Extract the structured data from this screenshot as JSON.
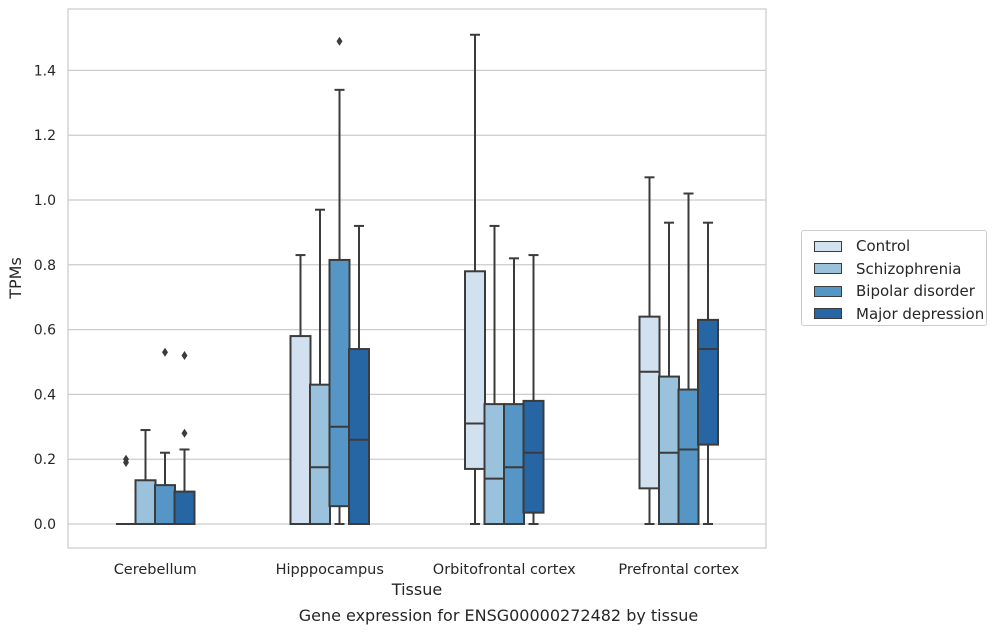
{
  "caption": "Gene expression for ENSG00000272482 by tissue",
  "legend": [
    {
      "name": "Control",
      "color": "#d1e1f0"
    },
    {
      "name": "Schizophrenia",
      "color": "#9bc2dd"
    },
    {
      "name": "Bipolar disorder",
      "color": "#5596c6"
    },
    {
      "name": "Major depression",
      "color": "#2766a5"
    }
  ],
  "chart_data": {
    "type": "box",
    "title": "",
    "xlabel": "Tissue",
    "ylabel": "TPMs",
    "ylim": [
      -0.07,
      1.6
    ],
    "yticks": [
      "0.0",
      "0.2",
      "0.4",
      "0.6",
      "0.8",
      "1.0",
      "1.2",
      "1.4"
    ],
    "grid": true,
    "legend_position": "right",
    "categories": [
      "Cerebellum",
      "Hipppocampus",
      "Orbitofrontal cortex",
      "Prefrontal cortex"
    ],
    "series": [
      {
        "name": "Control",
        "color": "#d1e1f0",
        "boxes": [
          {
            "whisker_low": 0.0,
            "q1": 0.0,
            "median": 0.0,
            "q3": 0.0,
            "whisker_high": 0.0,
            "outliers": [
              0.19,
              0.2
            ]
          },
          {
            "whisker_low": 0.0,
            "q1": 0.0,
            "median": 0.0,
            "q3": 0.58,
            "whisker_high": 0.83,
            "outliers": []
          },
          {
            "whisker_low": 0.0,
            "q1": 0.17,
            "median": 0.31,
            "q3": 0.78,
            "whisker_high": 1.51,
            "outliers": []
          },
          {
            "whisker_low": 0.0,
            "q1": 0.11,
            "median": 0.47,
            "q3": 0.64,
            "whisker_high": 1.07,
            "outliers": []
          }
        ]
      },
      {
        "name": "Schizophrenia",
        "color": "#9bc2dd",
        "boxes": [
          {
            "whisker_low": 0.0,
            "q1": 0.0,
            "median": 0.0,
            "q3": 0.135,
            "whisker_high": 0.29,
            "outliers": []
          },
          {
            "whisker_low": 0.0,
            "q1": 0.0,
            "median": 0.175,
            "q3": 0.43,
            "whisker_high": 0.97,
            "outliers": []
          },
          {
            "whisker_low": 0.0,
            "q1": 0.0,
            "median": 0.14,
            "q3": 0.37,
            "whisker_high": 0.92,
            "outliers": []
          },
          {
            "whisker_low": 0.0,
            "q1": 0.0,
            "median": 0.22,
            "q3": 0.455,
            "whisker_high": 0.93,
            "outliers": []
          }
        ]
      },
      {
        "name": "Bipolar disorder",
        "color": "#5596c6",
        "boxes": [
          {
            "whisker_low": 0.0,
            "q1": 0.0,
            "median": 0.0,
            "q3": 0.12,
            "whisker_high": 0.22,
            "outliers": [
              0.53
            ]
          },
          {
            "whisker_low": 0.0,
            "q1": 0.055,
            "median": 0.3,
            "q3": 0.815,
            "whisker_high": 1.34,
            "outliers": [
              1.49
            ]
          },
          {
            "whisker_low": 0.0,
            "q1": 0.0,
            "median": 0.175,
            "q3": 0.37,
            "whisker_high": 0.82,
            "outliers": []
          },
          {
            "whisker_low": 0.0,
            "q1": 0.0,
            "median": 0.23,
            "q3": 0.415,
            "whisker_high": 1.02,
            "outliers": []
          }
        ]
      },
      {
        "name": "Major depression",
        "color": "#2766a5",
        "boxes": [
          {
            "whisker_low": 0.0,
            "q1": 0.0,
            "median": 0.0,
            "q3": 0.1,
            "whisker_high": 0.23,
            "outliers": [
              0.28,
              0.52
            ]
          },
          {
            "whisker_low": 0.0,
            "q1": 0.0,
            "median": 0.26,
            "q3": 0.54,
            "whisker_high": 0.92,
            "outliers": []
          },
          {
            "whisker_low": 0.0,
            "q1": 0.035,
            "median": 0.22,
            "q3": 0.38,
            "whisker_high": 0.83,
            "outliers": []
          },
          {
            "whisker_low": 0.0,
            "q1": 0.245,
            "median": 0.54,
            "q3": 0.63,
            "whisker_high": 0.93,
            "outliers": []
          }
        ]
      }
    ]
  }
}
